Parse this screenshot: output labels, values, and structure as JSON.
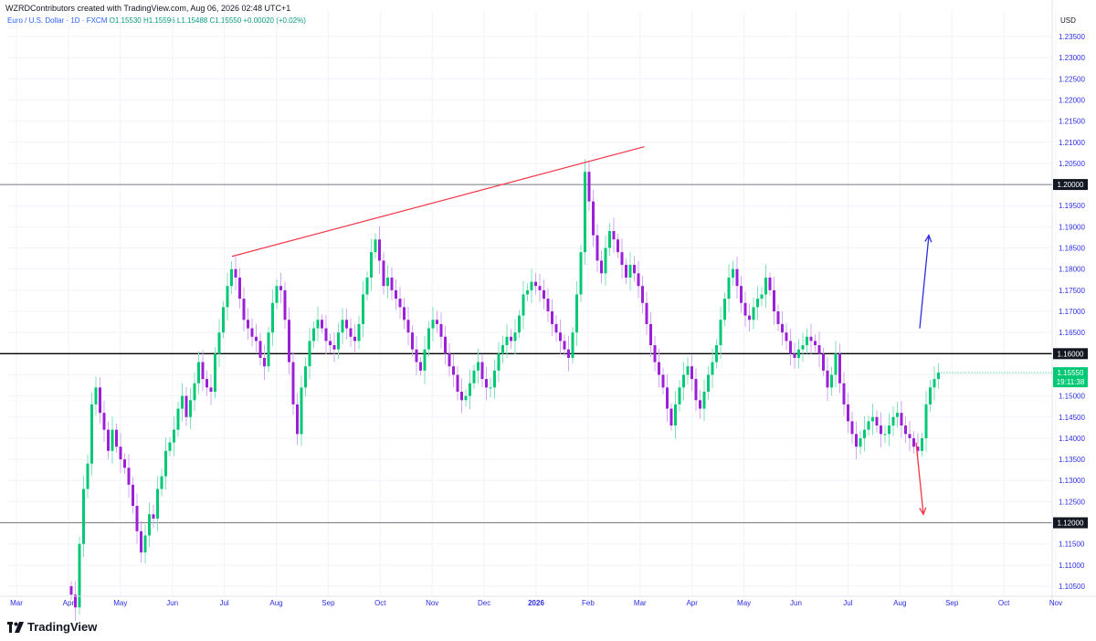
{
  "header": {
    "credit": "WZRDContributors created with TradingView.com, Aug 06, 2026 02:48 UTC+1",
    "symbol": "Euro / U.S. Dollar · 1D · FXCM",
    "ohlc": "O1.15530  H1.15596  L1.15488  C1.15550  +0.00020 (+0.02%)"
  },
  "footer": {
    "brand": "TradingView"
  },
  "chart_data": {
    "type": "candlestick",
    "currency": "USD",
    "ylim": [
      1.1,
      1.24
    ],
    "yticks": [
      "1.10500",
      "1.11000",
      "1.11500",
      "1.12000",
      "1.12500",
      "1.13000",
      "1.13500",
      "1.14000",
      "1.14500",
      "1.15000",
      "1.15500",
      "1.16000",
      "1.16500",
      "1.17000",
      "1.17500",
      "1.18000",
      "1.18500",
      "1.19000",
      "1.19500",
      "1.20000",
      "1.20500",
      "1.21000",
      "1.21500",
      "1.22000",
      "1.22500",
      "1.23000",
      "1.23500"
    ],
    "xticks": [
      "Mar",
      "Apr",
      "May",
      "Jun",
      "Jul",
      "Aug",
      "Sep",
      "Oct",
      "Nov",
      "Dec",
      "2026",
      "Feb",
      "Mar",
      "Apr",
      "May",
      "Jun",
      "Jul",
      "Aug",
      "Sep",
      "Oct",
      "Nov"
    ],
    "up_color": "#00c875",
    "down_color": "#9c1fd8",
    "horizontal_lines": [
      {
        "value": 1.2,
        "label": "1.20000",
        "color": "#787b86"
      },
      {
        "value": 1.16,
        "label": "1.16000",
        "color": "#000000"
      },
      {
        "value": 1.12,
        "label": "1.12000",
        "color": "#787b86"
      }
    ],
    "last_price": {
      "value": 1.1555,
      "label": "1.15550",
      "countdown": "19:11:38",
      "color": "#00c875"
    },
    "candles": [
      1.103,
      1.1,
      1.115,
      1.128,
      1.134,
      1.148,
      1.152,
      1.146,
      1.142,
      1.137,
      1.142,
      1.138,
      1.135,
      1.133,
      1.129,
      1.124,
      1.118,
      1.113,
      1.117,
      1.122,
      1.121,
      1.128,
      1.131,
      1.137,
      1.139,
      1.142,
      1.147,
      1.15,
      1.145,
      1.149,
      1.153,
      1.158,
      1.154,
      1.152,
      1.151,
      1.16,
      1.165,
      1.171,
      1.176,
      1.18,
      1.178,
      1.173,
      1.168,
      1.166,
      1.164,
      1.163,
      1.159,
      1.157,
      1.165,
      1.172,
      1.176,
      1.175,
      1.168,
      1.158,
      1.148,
      1.141,
      1.152,
      1.157,
      1.163,
      1.166,
      1.168,
      1.166,
      1.163,
      1.162,
      1.161,
      1.165,
      1.168,
      1.166,
      1.164,
      1.163,
      1.167,
      1.174,
      1.178,
      1.184,
      1.187,
      1.182,
      1.176,
      1.178,
      1.175,
      1.173,
      1.171,
      1.168,
      1.165,
      1.161,
      1.158,
      1.156,
      1.161,
      1.166,
      1.168,
      1.167,
      1.164,
      1.16,
      1.157,
      1.155,
      1.151,
      1.149,
      1.15,
      1.153,
      1.156,
      1.158,
      1.154,
      1.152,
      1.152,
      1.156,
      1.16,
      1.162,
      1.164,
      1.163,
      1.165,
      1.169,
      1.174,
      1.175,
      1.177,
      1.176,
      1.175,
      1.173,
      1.17,
      1.167,
      1.165,
      1.163,
      1.161,
      1.159,
      1.165,
      1.174,
      1.184,
      1.203,
      1.196,
      1.188,
      1.182,
      1.179,
      1.185,
      1.189,
      1.187,
      1.184,
      1.181,
      1.178,
      1.181,
      1.179,
      1.176,
      1.172,
      1.167,
      1.162,
      1.158,
      1.155,
      1.152,
      1.147,
      1.143,
      1.148,
      1.152,
      1.155,
      1.157,
      1.154,
      1.149,
      1.147,
      1.151,
      1.155,
      1.158,
      1.162,
      1.168,
      1.173,
      1.178,
      1.18,
      1.176,
      1.172,
      1.169,
      1.168,
      1.171,
      1.173,
      1.174,
      1.178,
      1.175,
      1.17,
      1.167,
      1.165,
      1.163,
      1.16,
      1.159,
      1.161,
      1.162,
      1.164,
      1.163,
      1.162,
      1.16,
      1.156,
      1.152,
      1.155,
      1.16,
      1.153,
      1.148,
      1.144,
      1.141,
      1.138,
      1.14,
      1.142,
      1.144,
      1.145,
      1.143,
      1.141,
      1.141,
      1.143,
      1.145,
      1.146,
      1.143,
      1.141,
      1.14,
      1.138,
      1.137,
      1.14,
      1.148,
      1.152,
      1.154,
      1.1555
    ],
    "trendline": {
      "from": {
        "index": 40,
        "value": 1.183
      },
      "to": {
        "index": 131,
        "value": 1.207
      },
      "color": "#f23645"
    },
    "arrows": [
      {
        "direction": "up",
        "from": 1.166,
        "to": 1.188,
        "color": "#2b2ce0"
      },
      {
        "direction": "down",
        "from": 1.139,
        "to": 1.122,
        "color": "#f23645"
      }
    ]
  }
}
